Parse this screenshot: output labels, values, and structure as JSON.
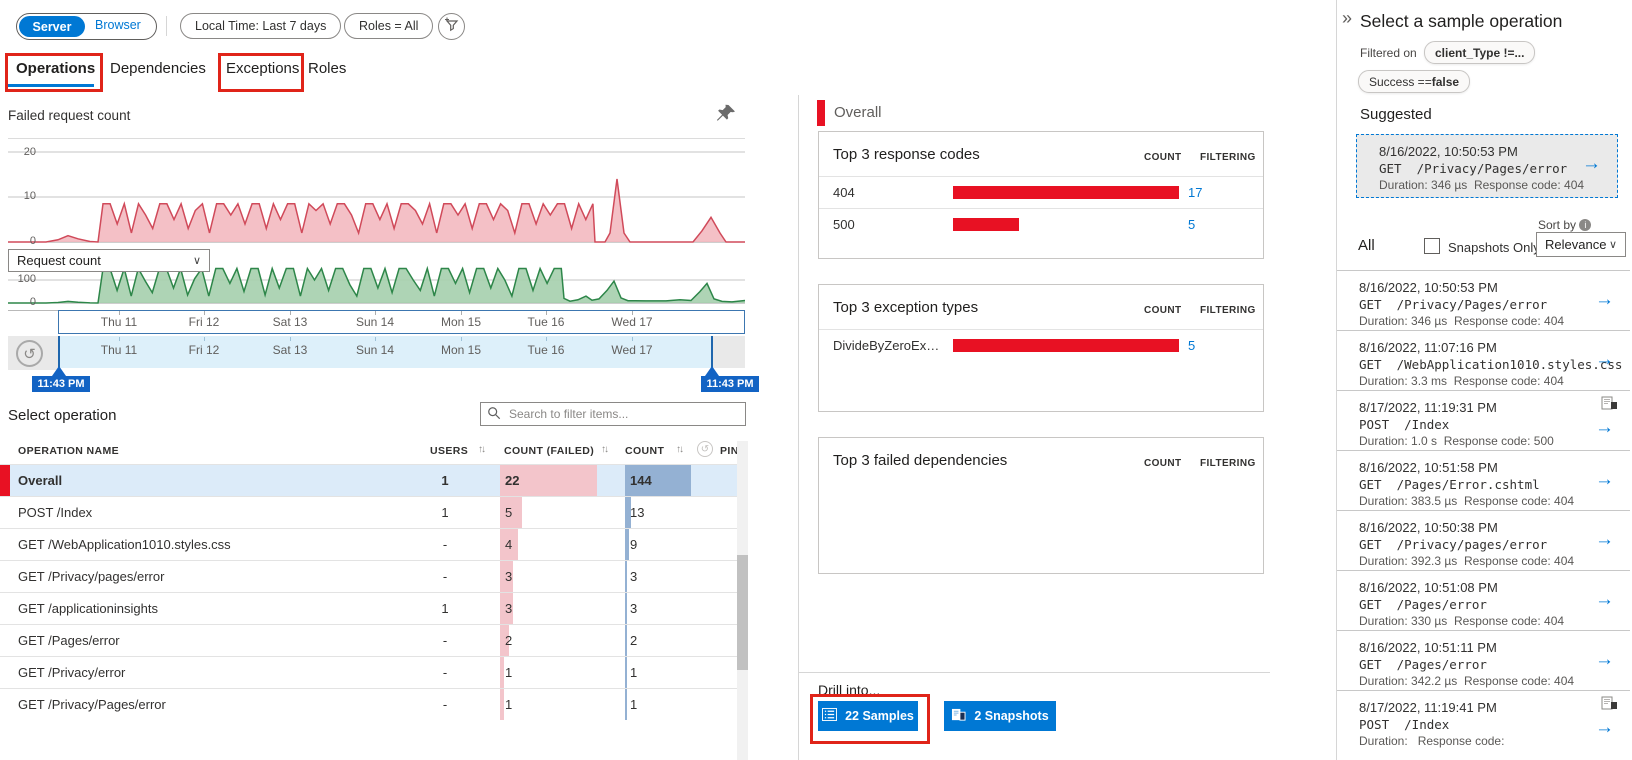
{
  "toolbar": {
    "server_label": "Server",
    "browser_label": "Browser",
    "time_filter": "Local Time: Last 7 days",
    "roles_filter": "Roles = All"
  },
  "tabs": [
    {
      "label": "Operations",
      "active": true,
      "annotated": true
    },
    {
      "label": "Dependencies",
      "active": false,
      "annotated": false
    },
    {
      "label": "Exceptions",
      "active": false,
      "annotated": true
    },
    {
      "label": "Roles",
      "active": false,
      "annotated": false
    }
  ],
  "left": {
    "chart_title": "Failed request count",
    "metric_dropdown_value": "Request count",
    "x_labels": [
      "Thu 11",
      "Fri 12",
      "Sat 13",
      "Sun 14",
      "Mon 15",
      "Tue 16",
      "Wed 17"
    ],
    "brush_start": "11:43 PM",
    "brush_end": "11:43 PM",
    "select_operation_label": "Select operation",
    "search_placeholder": "Search to filter items...",
    "table": {
      "col_operation": "OPERATION NAME",
      "col_users": "USERS",
      "col_failed": "COUNT (FAILED)",
      "col_count": "COUNT",
      "col_pin": "PIN",
      "max_failed": 22,
      "max_count": 144,
      "rows": [
        {
          "name": "Overall",
          "users": "1",
          "failed": "22",
          "count": "144",
          "selected": true
        },
        {
          "name": "POST /Index",
          "users": "1",
          "failed": "5",
          "count": "13",
          "selected": false
        },
        {
          "name": "GET /WebApplication1010.styles.css",
          "users": "-",
          "failed": "4",
          "count": "9",
          "selected": false
        },
        {
          "name": "GET /Privacy/pages/error",
          "users": "-",
          "failed": "3",
          "count": "3",
          "selected": false
        },
        {
          "name": "GET /applicationinsights",
          "users": "1",
          "failed": "3",
          "count": "3",
          "selected": false
        },
        {
          "name": "GET /Pages/error",
          "users": "-",
          "failed": "2",
          "count": "2",
          "selected": false
        },
        {
          "name": "GET /Privacy/error",
          "users": "-",
          "failed": "1",
          "count": "1",
          "selected": false
        },
        {
          "name": "GET /Privacy/Pages/error",
          "users": "-",
          "failed": "1",
          "count": "1",
          "selected": false
        }
      ]
    }
  },
  "middle": {
    "header": "Overall",
    "count_header": "COUNT",
    "filtering_header": "FILTERING",
    "cards": [
      {
        "title": "Top 3 response codes",
        "rows": [
          {
            "label": "404",
            "count": "17",
            "fraction": 1
          },
          {
            "label": "500",
            "count": "5",
            "fraction": 0.29
          }
        ]
      },
      {
        "title": "Top 3 exception types",
        "rows": [
          {
            "label": "DivideByZeroExcep...",
            "count": "5",
            "fraction": 1
          }
        ]
      },
      {
        "title": "Top 3 failed dependencies",
        "rows": []
      }
    ],
    "drill_into_label": "Drill into...",
    "samples_button": "22 Samples",
    "snapshots_button": "2 Snapshots"
  },
  "right": {
    "title": "Select a sample operation",
    "filtered_on_label": "Filtered on",
    "filter_pill_1": "client_Type !=...",
    "filter_pill_2_prefix": "Success == ",
    "filter_pill_2_bold": "false",
    "suggested_label": "Suggested",
    "suggested": {
      "time": "8/16/2022, 10:50:53 PM",
      "op": "GET  /Privacy/Pages/error",
      "duration": "346 µs",
      "response_code": "404"
    },
    "all_label": "All",
    "snapshots_only_label": "Snapshots Only",
    "sort_by_label": "Sort by",
    "sort_value": "Relevance",
    "duration_label": "Duration:",
    "response_label": "Response code:",
    "samples": [
      {
        "time": "8/16/2022, 10:50:53 PM",
        "op": "GET  /Privacy/Pages/error",
        "duration": "346 µs",
        "response_code": "404",
        "snapshot": false
      },
      {
        "time": "8/16/2022, 11:07:16 PM",
        "op": "GET  /WebApplication1010.styles.css",
        "duration": "3.3 ms",
        "response_code": "404",
        "snapshot": false
      },
      {
        "time": "8/17/2022, 11:19:31 PM",
        "op": "POST  /Index",
        "duration": "1.0 s",
        "response_code": "500",
        "snapshot": true
      },
      {
        "time": "8/16/2022, 10:51:58 PM",
        "op": "GET  /Pages/Error.cshtml",
        "duration": "383.5 µs",
        "response_code": "404",
        "snapshot": false
      },
      {
        "time": "8/16/2022, 10:50:38 PM",
        "op": "GET  /Privacy/pages/error",
        "duration": "392.3 µs",
        "response_code": "404",
        "snapshot": false
      },
      {
        "time": "8/16/2022, 10:51:08 PM",
        "op": "GET  /Pages/error",
        "duration": "330 µs",
        "response_code": "404",
        "snapshot": false
      },
      {
        "time": "8/16/2022, 10:51:11 PM",
        "op": "GET  /Pages/error",
        "duration": "342.2 µs",
        "response_code": "404",
        "snapshot": false
      },
      {
        "time": "8/17/2022, 11:19:41 PM",
        "op": "POST  /Index",
        "duration": "",
        "response_code": "",
        "snapshot": true
      }
    ]
  },
  "colors": {
    "accent": "#0078d4",
    "alert_red": "#e81123",
    "annotation_red": "#e02419",
    "chart_red_line": "#d04a5a",
    "chart_red_fill": "#f3b9c0",
    "chart_green_line": "#2d8649",
    "chart_green_fill": "#a5cfad",
    "selected_row_bg": "#dcebf9",
    "failed_cell": "#f3c5cb",
    "count_cell": "#94b1d3"
  },
  "chart_data": [
    {
      "type": "area",
      "name": "Failed request count",
      "ylim": [
        0,
        20
      ],
      "yticks": [
        "0",
        "10",
        "20"
      ],
      "x_axis": [
        "Thu 11",
        "Fri 12",
        "Sat 13",
        "Sun 14",
        "Mon 15",
        "Tue 16",
        "Wed 17"
      ],
      "pre": [
        [
          0,
          0
        ],
        [
          38,
          0
        ],
        [
          50,
          0.5
        ],
        [
          60,
          1.4
        ],
        [
          70,
          0.7
        ],
        [
          82,
          0.1
        ],
        [
          90,
          0
        ]
      ],
      "band_x0": 95,
      "band_dx": 7.1,
      "band": [
        8.5,
        8.5,
        4,
        8.5,
        2,
        8.5,
        6,
        3,
        8.5,
        8.5,
        5,
        8.5,
        3,
        7,
        8.5,
        2,
        8.5,
        8.5,
        6,
        8.5,
        4,
        8.5,
        8.5,
        3,
        8.5,
        5,
        8.5,
        8.5,
        2,
        8.5,
        7,
        8.5,
        4,
        8.5,
        8.5,
        6,
        2,
        8.5,
        8.5,
        5,
        8.5,
        3,
        8.5,
        8.5,
        7,
        4,
        8.5,
        2,
        8.5,
        8.5,
        6,
        8.5,
        3,
        8.5,
        8.5,
        5,
        8.5,
        7,
        2,
        8.5,
        8.5,
        4,
        8.5,
        6,
        8.5,
        8.5,
        3,
        8.5,
        5,
        8.5
      ],
      "post": [
        [
          587,
          0
        ],
        [
          597,
          0
        ],
        [
          602,
          2
        ],
        [
          609,
          14
        ],
        [
          616,
          2
        ],
        [
          622,
          0
        ],
        [
          685,
          0
        ],
        [
          694,
          2.5
        ],
        [
          703,
          5.5
        ],
        [
          712,
          2
        ],
        [
          718,
          0
        ],
        [
          737,
          0
        ]
      ]
    },
    {
      "type": "area",
      "name": "Request count",
      "ylim": [
        0,
        160
      ],
      "yticks": [
        "0",
        "100"
      ],
      "x_axis": [
        "Thu 11",
        "Fri 12",
        "Sat 13",
        "Sun 14",
        "Mon 15",
        "Tue 16",
        "Wed 17"
      ],
      "pre": [
        [
          0,
          0
        ],
        [
          38,
          0
        ],
        [
          50,
          2
        ],
        [
          60,
          7
        ],
        [
          70,
          3
        ],
        [
          82,
          0.5
        ],
        [
          90,
          0
        ]
      ],
      "band_x0": 95,
      "band_dx": 7.05,
      "band": [
        150,
        150,
        55,
        150,
        30,
        150,
        95,
        45,
        150,
        150,
        65,
        150,
        35,
        105,
        150,
        30,
        150,
        150,
        85,
        150,
        50,
        150,
        150,
        35,
        150,
        65,
        150,
        150,
        30,
        150,
        100,
        150,
        55,
        150,
        150,
        80,
        30,
        150,
        150,
        65,
        150,
        45,
        150,
        150,
        100,
        55,
        150,
        30,
        150,
        150,
        85,
        150,
        45,
        150,
        150,
        65,
        150,
        100,
        30,
        150,
        150,
        55,
        150,
        85,
        150,
        150
      ],
      "post": [
        [
          556,
          20
        ],
        [
          562,
          8
        ],
        [
          570,
          14
        ],
        [
          578,
          30
        ],
        [
          584,
          12
        ],
        [
          591,
          18
        ],
        [
          599,
          55
        ],
        [
          606,
          95
        ],
        [
          613,
          22
        ],
        [
          620,
          10
        ],
        [
          638,
          9
        ],
        [
          658,
          9
        ],
        [
          672,
          14
        ],
        [
          683,
          11
        ],
        [
          692,
          50
        ],
        [
          699,
          85
        ],
        [
          706,
          18
        ],
        [
          714,
          7
        ],
        [
          724,
          5
        ],
        [
          737,
          11
        ]
      ]
    }
  ]
}
